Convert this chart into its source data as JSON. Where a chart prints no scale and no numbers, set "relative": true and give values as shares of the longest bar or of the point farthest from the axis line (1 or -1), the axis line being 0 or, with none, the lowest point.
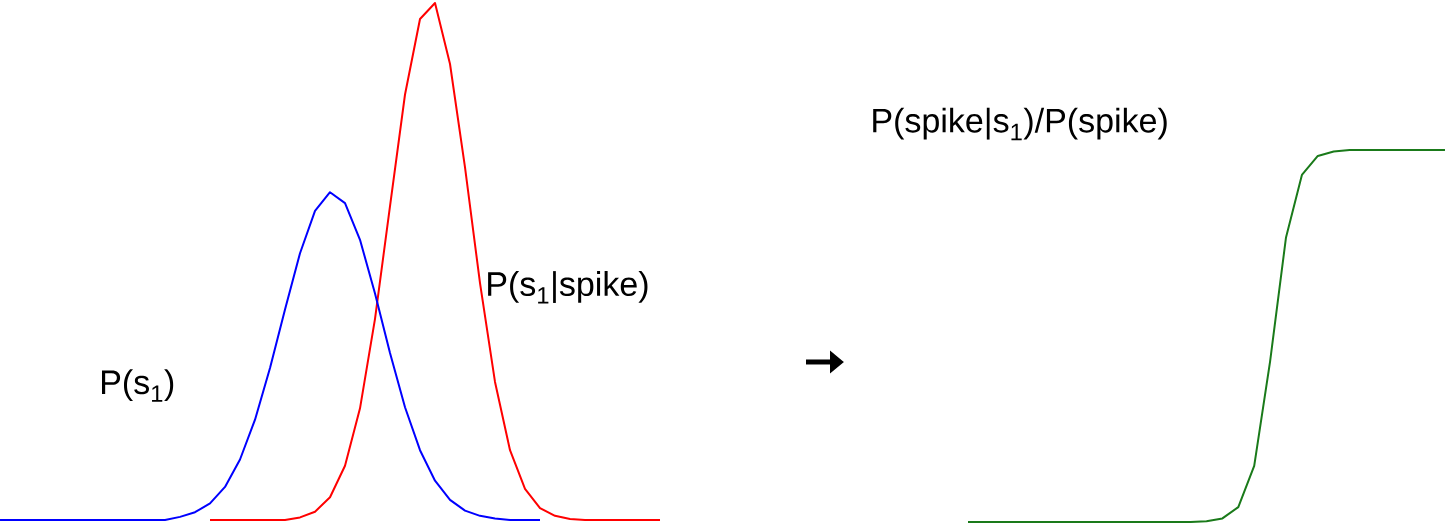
{
  "chart_data": [
    {
      "type": "line",
      "relative": true,
      "marker": "none",
      "line_style": "solid",
      "categories": [
        null,
        null,
        null,
        null,
        null,
        null,
        null,
        null,
        null,
        null,
        null,
        null,
        null,
        null,
        null,
        null,
        null,
        null,
        null,
        null,
        null,
        null,
        null,
        null,
        null,
        null,
        null,
        null,
        null,
        null,
        null,
        null,
        null,
        null,
        null,
        null,
        null,
        null,
        null,
        null,
        null,
        null,
        null,
        null,
        null
      ],
      "series": [
        {
          "name": "P(s$_{1}$|spike)",
          "color": "#ff0000",
          "values": [
            null,
            null,
            null,
            null,
            null,
            null,
            null,
            null,
            null,
            null,
            null,
            null,
            null,
            null,
            0,
            0,
            0,
            0,
            0,
            0,
            0.005,
            0.016,
            0.044,
            0.105,
            0.216,
            0.389,
            0.607,
            0.823,
            0.969,
            1,
            0.882,
            0.682,
            0.458,
            0.267,
            0.135,
            0.06,
            0.023,
            0.008,
            0.002,
            0,
            0,
            0,
            0,
            0,
            0
          ]
        },
        {
          "name": "P(s$_{1}$)",
          "color": "#0000ff",
          "values": [
            0,
            0,
            0,
            0,
            0,
            0,
            0,
            0,
            0,
            0,
            0,
            0,
            0.006,
            0.015,
            0.032,
            0.064,
            0.117,
            0.194,
            0.294,
            0.407,
            0.516,
            0.598,
            0.634,
            0.613,
            0.542,
            0.438,
            0.323,
            0.218,
            0.135,
            0.076,
            0.039,
            0.018,
            0.008,
            0.003,
            0,
            0,
            0,
            null,
            null,
            null,
            null,
            null,
            null,
            null,
            null
          ]
        }
      ]
    },
    {
      "type": "line",
      "relative": true,
      "marker": "none",
      "line_style": "solid",
      "categories": [
        null,
        null,
        null,
        null,
        null,
        null,
        null,
        null,
        null,
        null,
        null,
        null,
        null,
        null,
        null,
        null,
        null,
        null,
        null,
        null,
        null,
        null,
        null,
        null,
        null,
        null,
        null,
        null,
        null,
        null,
        null
      ],
      "series": [
        {
          "name": "P(spike|s$_{1}$)/P(spike)",
          "color": "#1a7a1a",
          "values": [
            0,
            0,
            0,
            0,
            0,
            0,
            0,
            0,
            0,
            0,
            0,
            0,
            0,
            0,
            0,
            0.002,
            0.0096,
            0.04,
            0.151,
            0.432,
            0.765,
            0.933,
            0.984,
            0.996,
            1,
            1,
            1,
            1,
            1,
            1,
            1
          ]
        }
      ]
    }
  ]
}
